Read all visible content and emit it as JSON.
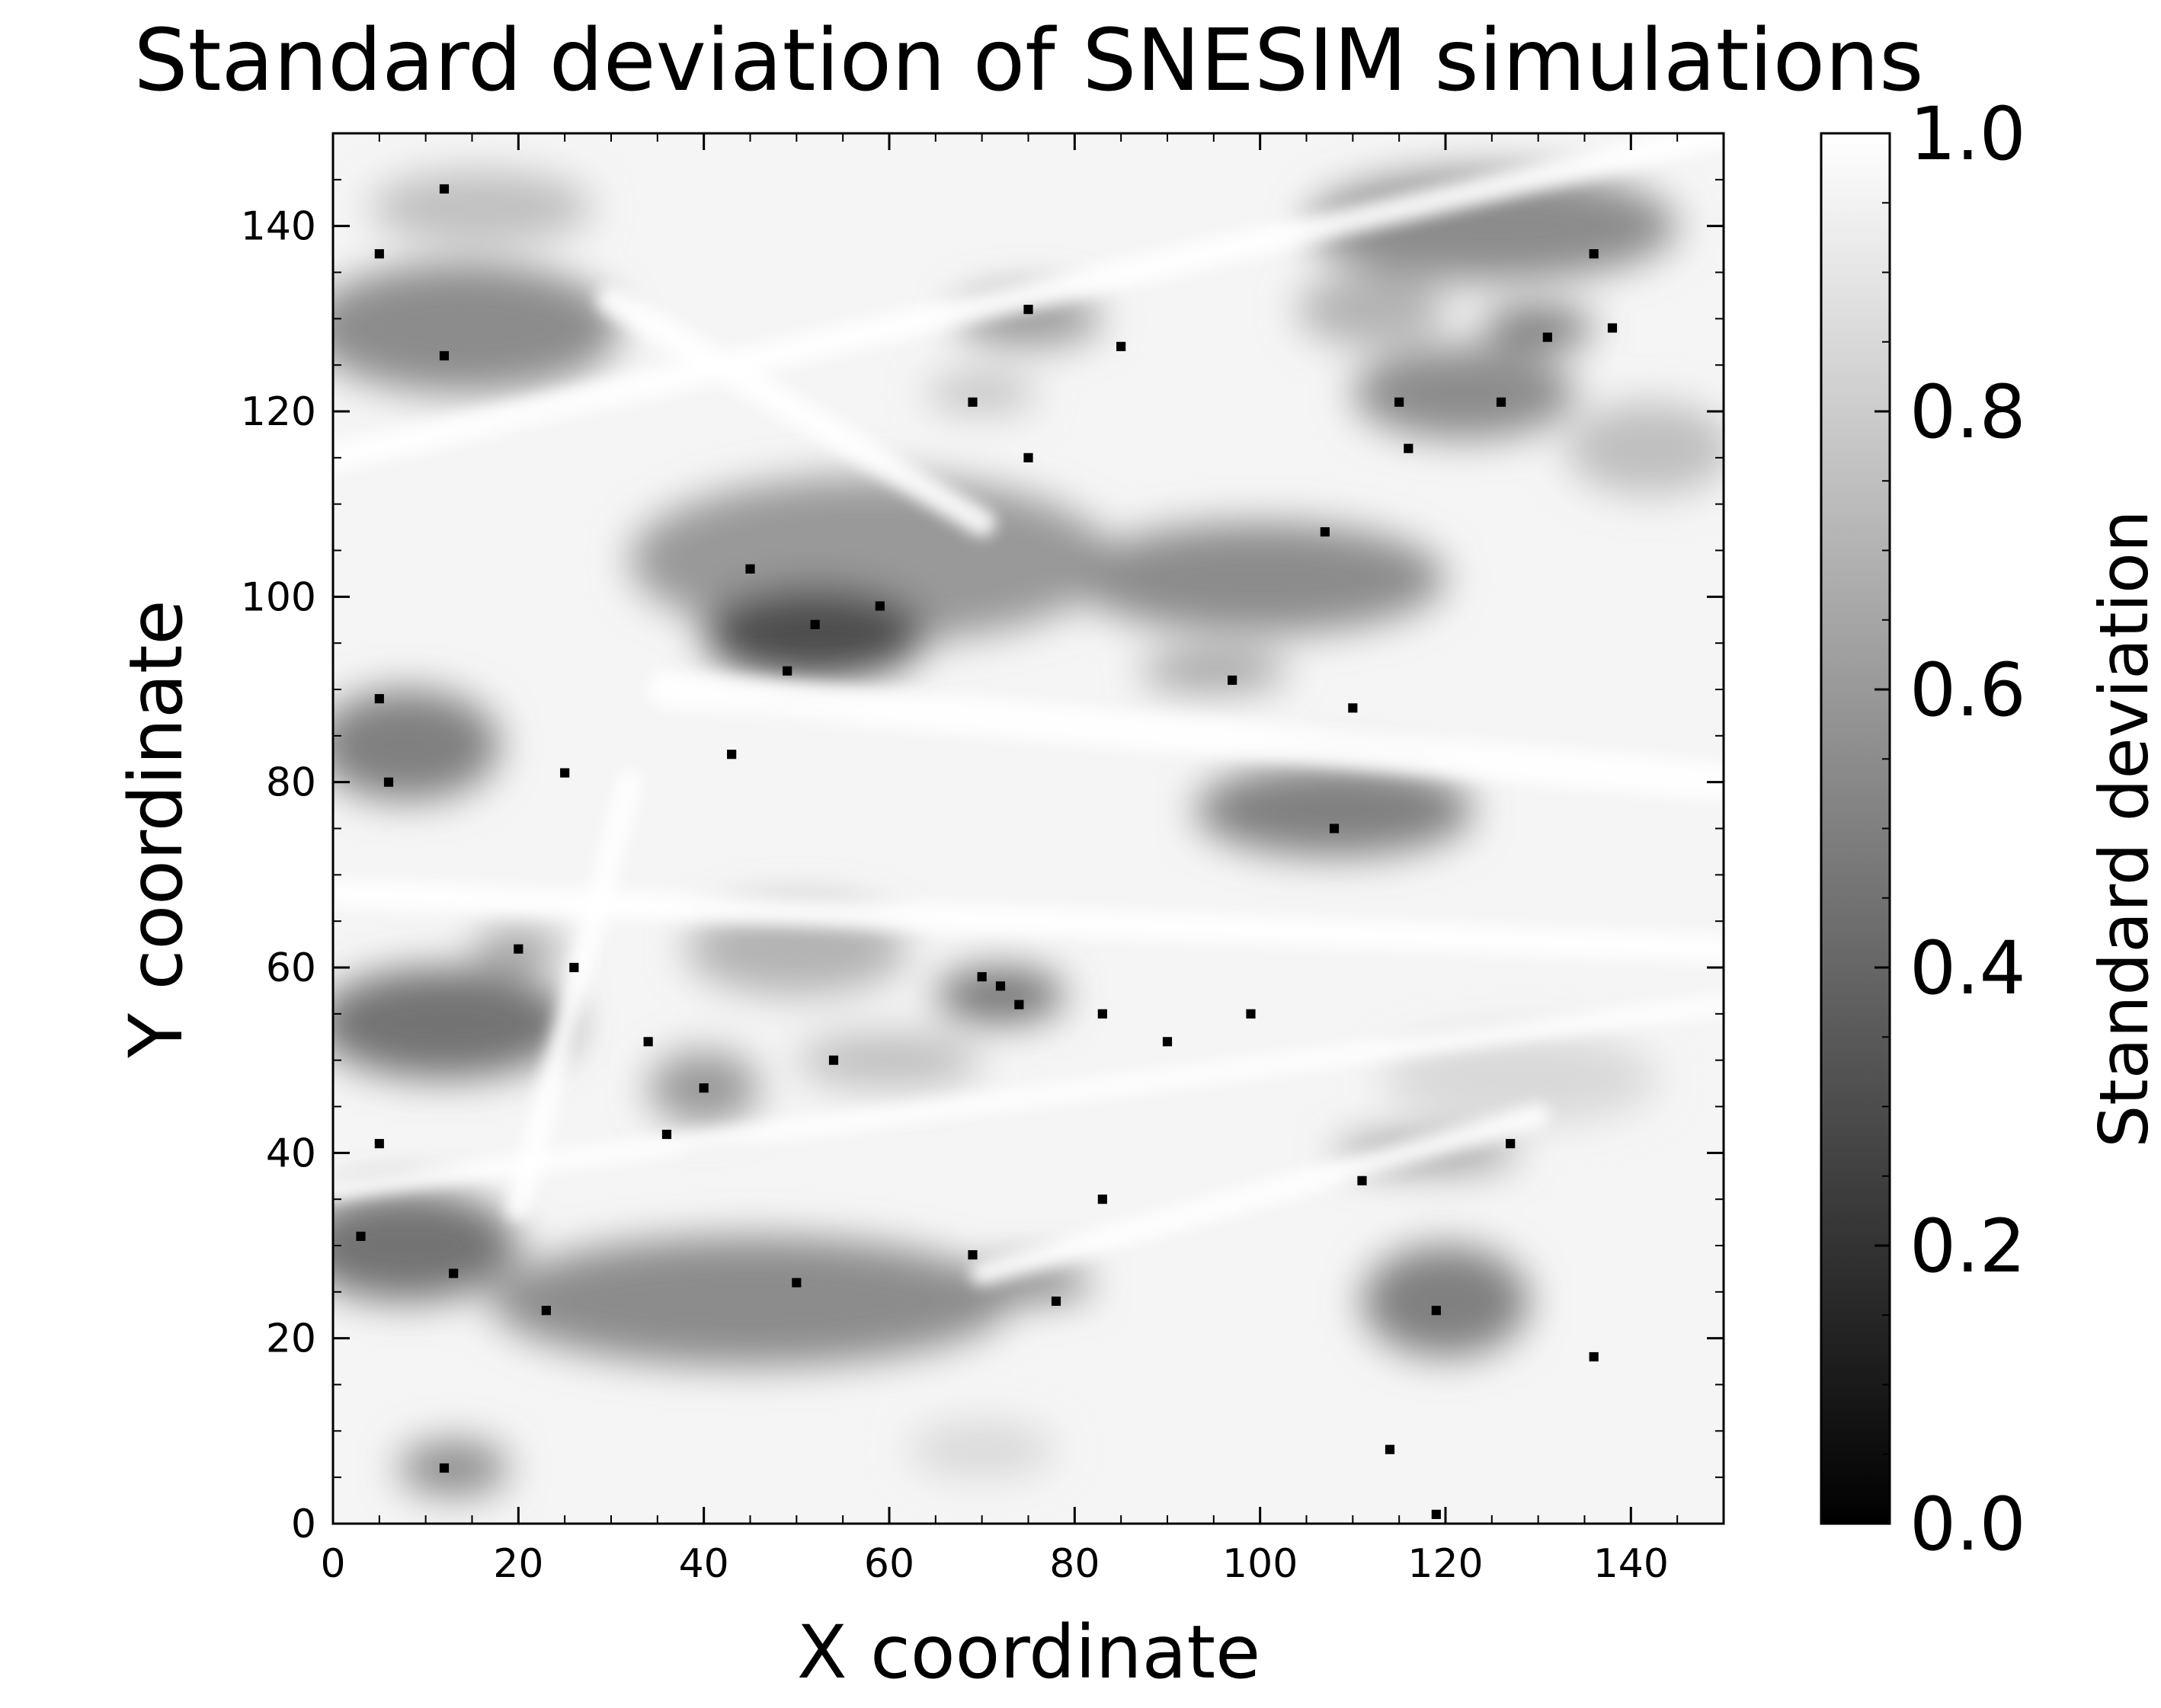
{
  "chart_data": {
    "type": "heatmap",
    "title": "Standard deviation of SNESIM simulations",
    "xlabel": "X coordinate",
    "ylabel": "Y coordinate",
    "xlim": [
      0,
      150
    ],
    "ylim": [
      0,
      150
    ],
    "x_ticks": [
      0,
      20,
      40,
      60,
      80,
      100,
      120,
      140
    ],
    "y_ticks": [
      0,
      20,
      40,
      60,
      80,
      100,
      120,
      140
    ],
    "x_tick_labels": [
      "0",
      "20",
      "40",
      "60",
      "80",
      "100",
      "120",
      "140"
    ],
    "y_tick_labels": [
      "0",
      "20",
      "40",
      "60",
      "80",
      "100",
      "120",
      "140"
    ],
    "colormap": "gray",
    "colorbar": {
      "label": "Standard deviation",
      "range": [
        0.0,
        1.0
      ],
      "ticks": [
        0.0,
        0.2,
        0.4,
        0.6,
        0.8,
        1.0
      ],
      "tick_labels": [
        "0.0",
        "0.2",
        "0.4",
        "0.6",
        "0.8",
        "1.0"
      ]
    },
    "background_value": 0.96,
    "grid": false,
    "gray_zones": [
      {
        "x": 14,
        "y": 129,
        "rx": 17,
        "ry": 7,
        "value": 0.55
      },
      {
        "x": 16,
        "y": 142,
        "rx": 12,
        "ry": 4,
        "value": 0.75
      },
      {
        "x": 58,
        "y": 104,
        "rx": 26,
        "ry": 9,
        "value": 0.6
      },
      {
        "x": 52,
        "y": 96,
        "rx": 12,
        "ry": 5,
        "value": 0.3
      },
      {
        "x": 100,
        "y": 102,
        "rx": 20,
        "ry": 6,
        "value": 0.55
      },
      {
        "x": 108,
        "y": 77,
        "rx": 15,
        "ry": 5,
        "value": 0.5
      },
      {
        "x": 8,
        "y": 84,
        "rx": 10,
        "ry": 6,
        "value": 0.5
      },
      {
        "x": 12,
        "y": 54,
        "rx": 14,
        "ry": 6,
        "value": 0.45
      },
      {
        "x": 50,
        "y": 62,
        "rx": 12,
        "ry": 5,
        "value": 0.7
      },
      {
        "x": 72,
        "y": 57,
        "rx": 7,
        "ry": 3,
        "value": 0.45
      },
      {
        "x": 60,
        "y": 50,
        "rx": 10,
        "ry": 3,
        "value": 0.75
      },
      {
        "x": 45,
        "y": 24,
        "rx": 28,
        "ry": 7,
        "value": 0.55
      },
      {
        "x": 8,
        "y": 30,
        "rx": 12,
        "ry": 6,
        "value": 0.45
      },
      {
        "x": 120,
        "y": 24,
        "rx": 9,
        "ry": 6,
        "value": 0.5
      },
      {
        "x": 125,
        "y": 140,
        "rx": 20,
        "ry": 6,
        "value": 0.55
      },
      {
        "x": 112,
        "y": 131,
        "rx": 8,
        "ry": 4,
        "value": 0.7
      },
      {
        "x": 122,
        "y": 122,
        "rx": 12,
        "ry": 5,
        "value": 0.55
      },
      {
        "x": 142,
        "y": 116,
        "rx": 9,
        "ry": 5,
        "value": 0.75
      },
      {
        "x": 13,
        "y": 6,
        "rx": 6,
        "ry": 3,
        "value": 0.55
      },
      {
        "x": 75,
        "y": 130,
        "rx": 8,
        "ry": 3,
        "value": 0.6
      },
      {
        "x": 70,
        "y": 122,
        "rx": 6,
        "ry": 2,
        "value": 0.75
      },
      {
        "x": 128,
        "y": 48,
        "rx": 15,
        "ry": 5,
        "value": 0.85
      },
      {
        "x": 95,
        "y": 92,
        "rx": 8,
        "ry": 2,
        "value": 0.6
      },
      {
        "x": 75,
        "y": 26,
        "rx": 7,
        "ry": 2,
        "value": 0.5
      },
      {
        "x": 118,
        "y": 40,
        "rx": 10,
        "ry": 2,
        "value": 0.6
      },
      {
        "x": 40,
        "y": 47,
        "rx": 6,
        "ry": 4,
        "value": 0.6
      },
      {
        "x": 20,
        "y": 62,
        "rx": 5,
        "ry": 2,
        "value": 0.6
      },
      {
        "x": 130,
        "y": 129,
        "rx": 6,
        "ry": 2,
        "value": 0.4
      },
      {
        "x": 70,
        "y": 8,
        "rx": 8,
        "ry": 3,
        "value": 0.85
      }
    ],
    "white_streaks": [
      {
        "x1": 0,
        "y1": 115,
        "x2": 150,
        "y2": 150,
        "width": 3
      },
      {
        "x1": 20,
        "y1": 34,
        "x2": 32,
        "y2": 80,
        "width": 2.5
      },
      {
        "x1": 70,
        "y1": 27,
        "x2": 130,
        "y2": 44,
        "width": 2.5
      },
      {
        "x1": 0,
        "y1": 36,
        "x2": 150,
        "y2": 56,
        "width": 2
      },
      {
        "x1": 30,
        "y1": 132,
        "x2": 70,
        "y2": 108,
        "width": 3
      },
      {
        "x1": 36,
        "y1": 90,
        "x2": 150,
        "y2": 80,
        "width": 4
      },
      {
        "x1": 0,
        "y1": 68,
        "x2": 150,
        "y2": 62,
        "width": 3
      }
    ],
    "conditioning_points": [
      [
        12,
        144
      ],
      [
        5,
        137
      ],
      [
        12,
        126
      ],
      [
        75,
        131
      ],
      [
        85,
        127
      ],
      [
        69,
        121
      ],
      [
        75,
        115
      ],
      [
        115,
        121
      ],
      [
        116,
        116
      ],
      [
        126,
        121
      ],
      [
        131,
        128
      ],
      [
        138,
        129
      ],
      [
        136,
        137
      ],
      [
        45,
        103
      ],
      [
        52,
        97
      ],
      [
        59,
        99
      ],
      [
        49,
        92
      ],
      [
        107,
        107
      ],
      [
        97,
        91
      ],
      [
        110,
        88
      ],
      [
        5,
        89
      ],
      [
        6,
        80
      ],
      [
        25,
        81
      ],
      [
        43,
        83
      ],
      [
        108,
        75
      ],
      [
        20,
        62
      ],
      [
        26,
        60
      ],
      [
        70,
        59
      ],
      [
        72,
        58
      ],
      [
        74,
        56
      ],
      [
        83,
        55
      ],
      [
        99,
        55
      ],
      [
        34,
        52
      ],
      [
        40,
        47
      ],
      [
        36,
        42
      ],
      [
        54,
        50
      ],
      [
        90,
        52
      ],
      [
        5,
        41
      ],
      [
        127,
        41
      ],
      [
        111,
        37
      ],
      [
        83,
        35
      ],
      [
        3,
        31
      ],
      [
        13,
        27
      ],
      [
        23,
        23
      ],
      [
        50,
        26
      ],
      [
        69,
        29
      ],
      [
        78,
        24
      ],
      [
        119,
        23
      ],
      [
        136,
        18
      ],
      [
        114,
        8
      ],
      [
        12,
        6
      ],
      [
        119,
        1
      ]
    ],
    "point_value": 0.0
  }
}
